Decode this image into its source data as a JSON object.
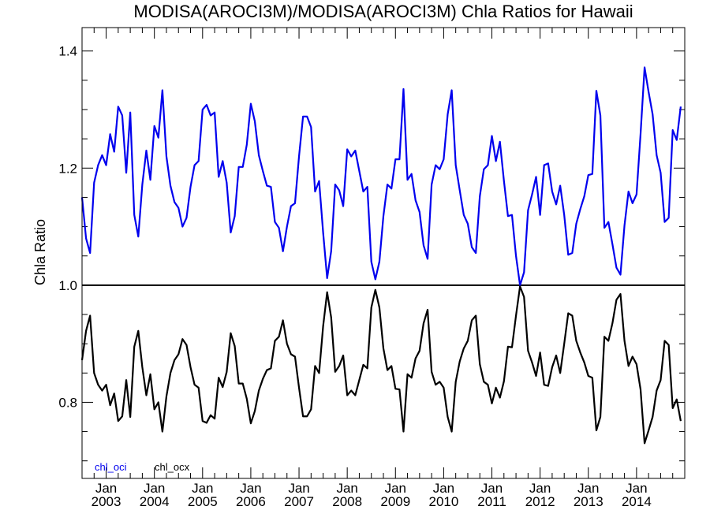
{
  "chart_data": {
    "type": "line",
    "title": "MODISA(AROCI3M)/MODISA(AROCI3M)  Chla Ratios for Hawaii",
    "xlabel": "",
    "ylabel": "Chla Ratio",
    "x_start": "2002-07",
    "x_step": "1 month",
    "xlim": [
      "2002-07",
      "2015-01"
    ],
    "ylim": [
      0.67,
      1.44
    ],
    "y_ticks": [
      "0.8",
      "1.0",
      "1.2",
      "1.4"
    ],
    "x_ticks": [
      {
        "month": "Jan",
        "year": "2003"
      },
      {
        "month": "Jan",
        "year": "2004"
      },
      {
        "month": "Jan",
        "year": "2005"
      },
      {
        "month": "Jan",
        "year": "2006"
      },
      {
        "month": "Jan",
        "year": "2007"
      },
      {
        "month": "Jan",
        "year": "2008"
      },
      {
        "month": "Jan",
        "year": "2009"
      },
      {
        "month": "Jan",
        "year": "2010"
      },
      {
        "month": "Jan",
        "year": "2011"
      },
      {
        "month": "Jan",
        "year": "2012"
      },
      {
        "month": "Jan",
        "year": "2013"
      },
      {
        "month": "Jan",
        "year": "2014"
      }
    ],
    "reference_line": 1.0,
    "grid": false,
    "legend_position": "bottom-left",
    "series": [
      {
        "name": "chl_oci",
        "color": "#0000ee",
        "values": [
          1.15,
          1.08,
          1.055,
          1.175,
          1.205,
          1.222,
          1.205,
          1.258,
          1.228,
          1.305,
          1.29,
          1.192,
          1.295,
          1.12,
          1.083,
          1.172,
          1.23,
          1.18,
          1.272,
          1.252,
          1.333,
          1.22,
          1.17,
          1.142,
          1.132,
          1.1,
          1.115,
          1.168,
          1.205,
          1.212,
          1.3,
          1.308,
          1.29,
          1.295,
          1.185,
          1.212,
          1.175,
          1.09,
          1.118,
          1.202,
          1.202,
          1.24,
          1.31,
          1.28,
          1.222,
          1.195,
          1.17,
          1.168,
          1.108,
          1.098,
          1.058,
          1.1,
          1.135,
          1.14,
          1.22,
          1.288,
          1.288,
          1.27,
          1.16,
          1.178,
          1.09,
          1.012,
          1.058,
          1.172,
          1.162,
          1.135,
          1.232,
          1.22,
          1.23,
          1.195,
          1.16,
          1.168,
          1.04,
          1.01,
          1.04,
          1.118,
          1.172,
          1.165,
          1.215,
          1.215,
          1.335,
          1.18,
          1.19,
          1.145,
          1.125,
          1.068,
          1.045,
          1.172,
          1.205,
          1.198,
          1.215,
          1.292,
          1.333,
          1.205,
          1.162,
          1.12,
          1.105,
          1.065,
          1.055,
          1.152,
          1.198,
          1.205,
          1.255,
          1.212,
          1.245,
          1.178,
          1.118,
          1.12,
          1.05,
          1.0,
          1.022,
          1.128,
          1.155,
          1.185,
          1.12,
          1.205,
          1.208,
          1.16,
          1.138,
          1.17,
          1.12,
          1.052,
          1.055,
          1.105,
          1.13,
          1.152,
          1.188,
          1.19,
          1.332,
          1.29,
          1.098,
          1.108,
          1.07,
          1.03,
          1.018,
          1.102,
          1.16,
          1.14,
          1.155,
          1.258,
          1.372,
          1.33,
          1.292,
          1.222,
          1.192,
          1.108,
          1.115,
          1.265,
          1.248,
          1.305
        ]
      },
      {
        "name": "chl_ocx",
        "color": "#000000",
        "values": [
          0.872,
          0.922,
          0.948,
          0.85,
          0.83,
          0.82,
          0.83,
          0.795,
          0.815,
          0.768,
          0.776,
          0.838,
          0.775,
          0.895,
          0.922,
          0.86,
          0.812,
          0.848,
          0.788,
          0.8,
          0.75,
          0.81,
          0.85,
          0.872,
          0.882,
          0.908,
          0.898,
          0.86,
          0.83,
          0.825,
          0.768,
          0.765,
          0.778,
          0.772,
          0.842,
          0.826,
          0.852,
          0.918,
          0.896,
          0.832,
          0.832,
          0.806,
          0.764,
          0.785,
          0.82,
          0.84,
          0.855,
          0.858,
          0.905,
          0.912,
          0.94,
          0.9,
          0.882,
          0.878,
          0.825,
          0.776,
          0.776,
          0.788,
          0.862,
          0.85,
          0.93,
          0.988,
          0.945,
          0.852,
          0.862,
          0.88,
          0.812,
          0.82,
          0.812,
          0.838,
          0.864,
          0.858,
          0.962,
          0.992,
          0.962,
          0.892,
          0.855,
          0.862,
          0.823,
          0.822,
          0.75,
          0.848,
          0.842,
          0.875,
          0.888,
          0.935,
          0.958,
          0.852,
          0.83,
          0.835,
          0.825,
          0.775,
          0.75,
          0.835,
          0.87,
          0.892,
          0.905,
          0.94,
          0.948,
          0.865,
          0.835,
          0.83,
          0.798,
          0.825,
          0.808,
          0.836,
          0.895,
          0.894,
          0.948,
          0.998,
          0.98,
          0.888,
          0.868,
          0.845,
          0.885,
          0.83,
          0.828,
          0.86,
          0.88,
          0.85,
          0.9,
          0.952,
          0.948,
          0.905,
          0.885,
          0.868,
          0.845,
          0.842,
          0.752,
          0.775,
          0.912,
          0.905,
          0.935,
          0.975,
          0.985,
          0.905,
          0.862,
          0.878,
          0.865,
          0.822,
          0.73,
          0.752,
          0.775,
          0.82,
          0.838,
          0.905,
          0.898,
          0.79,
          0.805,
          0.768
        ]
      }
    ]
  }
}
